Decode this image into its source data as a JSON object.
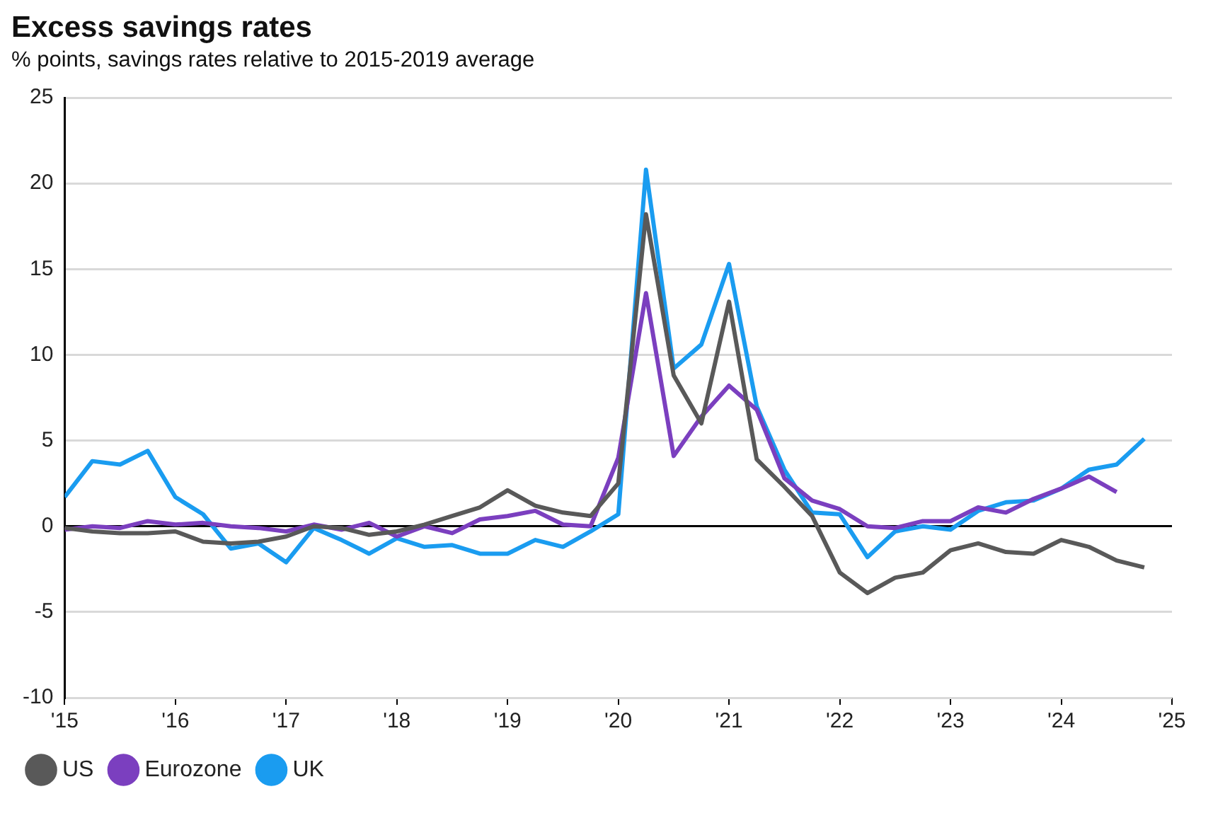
{
  "chart_data": {
    "type": "line",
    "title": "Excess savings rates",
    "subtitle": "% points, savings rates relative to 2015-2019 average",
    "xlim": [
      2015,
      2025
    ],
    "xticks": [
      {
        "value": 2015,
        "label": "'15"
      },
      {
        "value": 2016,
        "label": "'16"
      },
      {
        "value": 2017,
        "label": "'17"
      },
      {
        "value": 2018,
        "label": "'18"
      },
      {
        "value": 2019,
        "label": "'19"
      },
      {
        "value": 2020,
        "label": "'20"
      },
      {
        "value": 2021,
        "label": "'21"
      },
      {
        "value": 2022,
        "label": "'22"
      },
      {
        "value": 2023,
        "label": "'23"
      },
      {
        "value": 2024,
        "label": "'24"
      },
      {
        "value": 2025,
        "label": "'25"
      }
    ],
    "ylim": [
      -10,
      25
    ],
    "yticks": [
      -10,
      -5,
      0,
      5,
      10,
      15,
      20,
      25
    ],
    "grid": "y",
    "legend": "bottom left",
    "marker": "none",
    "line_style": "solid",
    "x": [
      2015,
      2015.25,
      2015.5,
      2015.75,
      2016,
      2016.25,
      2016.5,
      2016.75,
      2017,
      2017.25,
      2017.5,
      2017.75,
      2018,
      2018.25,
      2018.5,
      2018.75,
      2019,
      2019.25,
      2019.5,
      2019.75,
      2020,
      2020.25,
      2020.5,
      2020.75,
      2021,
      2021.25,
      2021.5,
      2021.75,
      2022,
      2022.25,
      2022.5,
      2022.75,
      2023,
      2023.25,
      2023.5,
      2023.75,
      2024,
      2024.25,
      2024.5,
      2024.75
    ],
    "series": [
      {
        "name": "US",
        "color": "#595959",
        "values": [
          -0.1,
          -0.3,
          -0.4,
          -0.4,
          -0.3,
          -0.9,
          -1.0,
          -0.9,
          -0.6,
          0.0,
          -0.1,
          -0.5,
          -0.3,
          0.1,
          0.6,
          1.1,
          2.1,
          1.2,
          0.8,
          0.6,
          2.5,
          18.2,
          8.8,
          6.0,
          13.1,
          3.9,
          2.3,
          0.6,
          -2.7,
          -3.9,
          -3.0,
          -2.7,
          -1.4,
          -1.0,
          -1.5,
          -1.6,
          -0.8,
          -1.2,
          -2.0,
          -2.4
        ]
      },
      {
        "name": "Eurozone",
        "color": "#7b3fbf",
        "values": [
          -0.2,
          0.0,
          -0.1,
          0.3,
          0.1,
          0.2,
          0.0,
          -0.1,
          -0.3,
          0.1,
          -0.2,
          0.2,
          -0.6,
          0.0,
          -0.4,
          0.4,
          0.6,
          0.9,
          0.1,
          0.0,
          4.0,
          13.6,
          4.1,
          6.4,
          8.2,
          6.8,
          2.8,
          1.5,
          1.0,
          0.0,
          -0.1,
          0.3,
          0.3,
          1.1,
          0.8,
          1.6,
          2.2,
          2.9,
          2.0,
          null
        ]
      },
      {
        "name": "UK",
        "color": "#1a9cf0",
        "values": [
          1.7,
          3.8,
          3.6,
          4.4,
          1.7,
          0.7,
          -1.3,
          -1.0,
          -2.1,
          -0.1,
          -0.8,
          -1.6,
          -0.7,
          -1.2,
          -1.1,
          -1.6,
          -1.6,
          -0.8,
          -1.2,
          -0.3,
          0.7,
          20.8,
          9.2,
          10.6,
          15.3,
          7.0,
          3.3,
          0.8,
          0.7,
          -1.8,
          -0.3,
          0.0,
          -0.2,
          0.9,
          1.4,
          1.5,
          2.2,
          3.3,
          3.6,
          5.1
        ]
      }
    ]
  }
}
